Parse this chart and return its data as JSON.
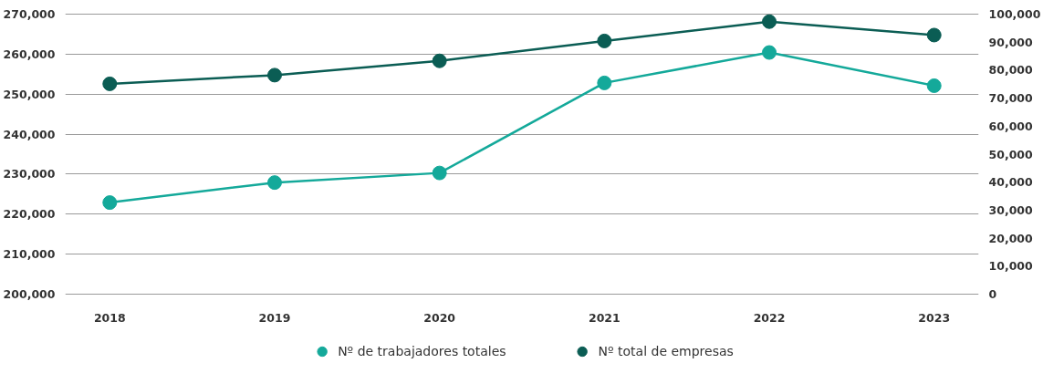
{
  "chart_data": {
    "type": "line",
    "categories": [
      "2018",
      "2019",
      "2020",
      "2021",
      "2022",
      "2023"
    ],
    "series": [
      {
        "name": "Nº de trabajadores totales",
        "color": "#14a99a",
        "values": [
          222900,
          227900,
          230300,
          252800,
          260400,
          252100
        ]
      },
      {
        "name": "Nº total de empresas",
        "color": "#0b5d54",
        "axis": "y2",
        "values": [
          75100,
          78200,
          83300,
          90400,
          97300,
          92500
        ]
      }
    ],
    "ylim": [
      200000,
      270000
    ],
    "yticks": [
      {
        "value": 200000,
        "label": "200,000"
      },
      {
        "value": 210000,
        "label": "210,000"
      },
      {
        "value": 220000,
        "label": "220,000"
      },
      {
        "value": 230000,
        "label": "230,000"
      },
      {
        "value": 240000,
        "label": "240,000"
      },
      {
        "value": 250000,
        "label": "250,000"
      },
      {
        "value": 260000,
        "label": "260,000"
      },
      {
        "value": 270000,
        "label": "270,000"
      }
    ],
    "y2lim": [
      0,
      100000
    ],
    "y2ticks": [
      0,
      {
        "value": 10000,
        "label": "10,000"
      },
      {
        "value": 20000,
        "label": "20,000"
      },
      {
        "value": 30000,
        "label": "30,000"
      },
      {
        "value": 40000,
        "label": "40,000"
      },
      {
        "value": 50000,
        "label": "50,000"
      },
      {
        "value": 60000,
        "label": "60,000"
      },
      {
        "value": 70000,
        "label": "70,000"
      },
      {
        "value": 80000,
        "label": "80,000"
      },
      {
        "value": 90000,
        "label": "90,000"
      },
      {
        "value": 100000,
        "label": "100,000"
      }
    ],
    "grid": "y",
    "legend": "bottom",
    "marker": "circle",
    "line_style": "solid"
  }
}
